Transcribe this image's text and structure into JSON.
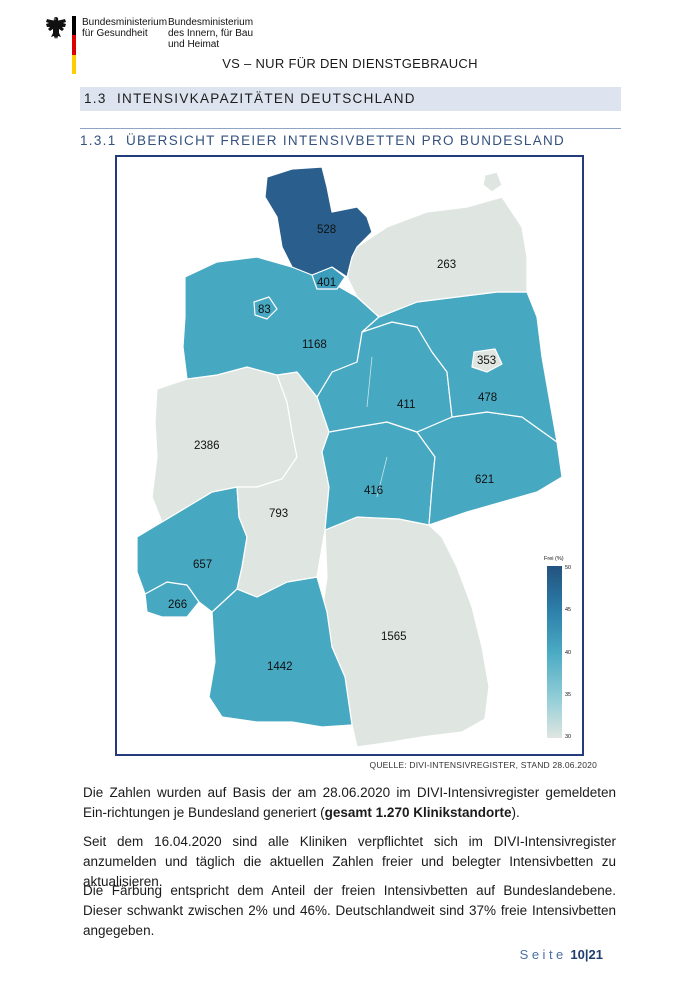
{
  "header": {
    "ministry_left": [
      "Bundesministerium",
      "für Gesundheit"
    ],
    "ministry_right": [
      "Bundesministerium",
      "des Innern, für Bau",
      "und Heimat"
    ],
    "classification": "VS – NUR FÜR DEN DIENSTGEBRAUCH",
    "flag_colors": [
      "#000000",
      "#dd0000",
      "#ffcc00"
    ]
  },
  "section": {
    "number": "1.3",
    "title": "INTENSIVKAPAZITÄTEN DEUTSCHLAND"
  },
  "subsection": {
    "number": "1.3.1",
    "title": "ÜBERSICHT FREIER INTENSIVBETTEN PRO BUNDESLAND"
  },
  "map": {
    "legend": {
      "title": "Frei (%)",
      "ticks": [
        "50",
        "45",
        "40",
        "35",
        "30"
      ],
      "range": [
        30,
        50
      ],
      "colors": [
        "#dfe6e1",
        "#8ccbd6",
        "#4aaac3",
        "#2c7ea9",
        "#23527f"
      ]
    },
    "states": [
      {
        "id": "schleswig-holstein",
        "value": "528",
        "color": "#2a5f8d"
      },
      {
        "id": "hamburg",
        "value": "401",
        "color": "#3c9cbc"
      },
      {
        "id": "mecklenburg-vorpommern",
        "value": "263",
        "color": "#dfe6e1"
      },
      {
        "id": "bremen",
        "value": "83",
        "color": "#47a8c2"
      },
      {
        "id": "niedersachsen",
        "value": "1168",
        "color": "#47a8c2"
      },
      {
        "id": "berlin",
        "value": "353",
        "color": "#dfe6e1"
      },
      {
        "id": "brandenburg",
        "value": "478",
        "color": "#47a8c2"
      },
      {
        "id": "sachsen-anhalt",
        "value": "411",
        "color": "#47a8c2"
      },
      {
        "id": "nordrhein-westfalen",
        "value": "2386",
        "color": "#dfe6e1"
      },
      {
        "id": "thueringen",
        "value": "416",
        "color": "#47a8c2"
      },
      {
        "id": "sachsen",
        "value": "621",
        "color": "#47a8c2"
      },
      {
        "id": "hessen",
        "value": "793",
        "color": "#dfe6e1"
      },
      {
        "id": "rheinland-pfalz",
        "value": "657",
        "color": "#47a8c2"
      },
      {
        "id": "saarland",
        "value": "266",
        "color": "#47a8c2"
      },
      {
        "id": "baden-wuerttemberg",
        "value": "1442",
        "color": "#47a8c2"
      },
      {
        "id": "bayern",
        "value": "1565",
        "color": "#dfe6e1"
      }
    ]
  },
  "source": "QUELLE: DIVI-INTENSIVREGISTER, STAND 28.06.2020",
  "paragraphs": {
    "p1_pre": "Die Zahlen wurden auf Basis der am 28.06.2020 im DIVI-Intensivregister gemeldeten Ein-richtungen je Bundesland generiert (",
    "p1_bold": "gesamt 1.270 Klinikstandorte",
    "p1_post": ").",
    "p2": "Seit dem 16.04.2020 sind alle Kliniken verpflichtet sich im DIVI-Intensivregister anzumelden und täglich die aktuellen Zahlen freier und belegter Intensivbetten zu aktualisieren.",
    "p3": "Die Färbung entspricht dem Anteil der freien Intensivbetten auf Bundeslandebene. Dieser schwankt zwischen 2% und 46%. Deutschlandweit sind 37% freie Intensivbetten angegeben."
  },
  "footer": {
    "seite": "Seite",
    "page": "10",
    "sep": "|",
    "total": "21"
  }
}
